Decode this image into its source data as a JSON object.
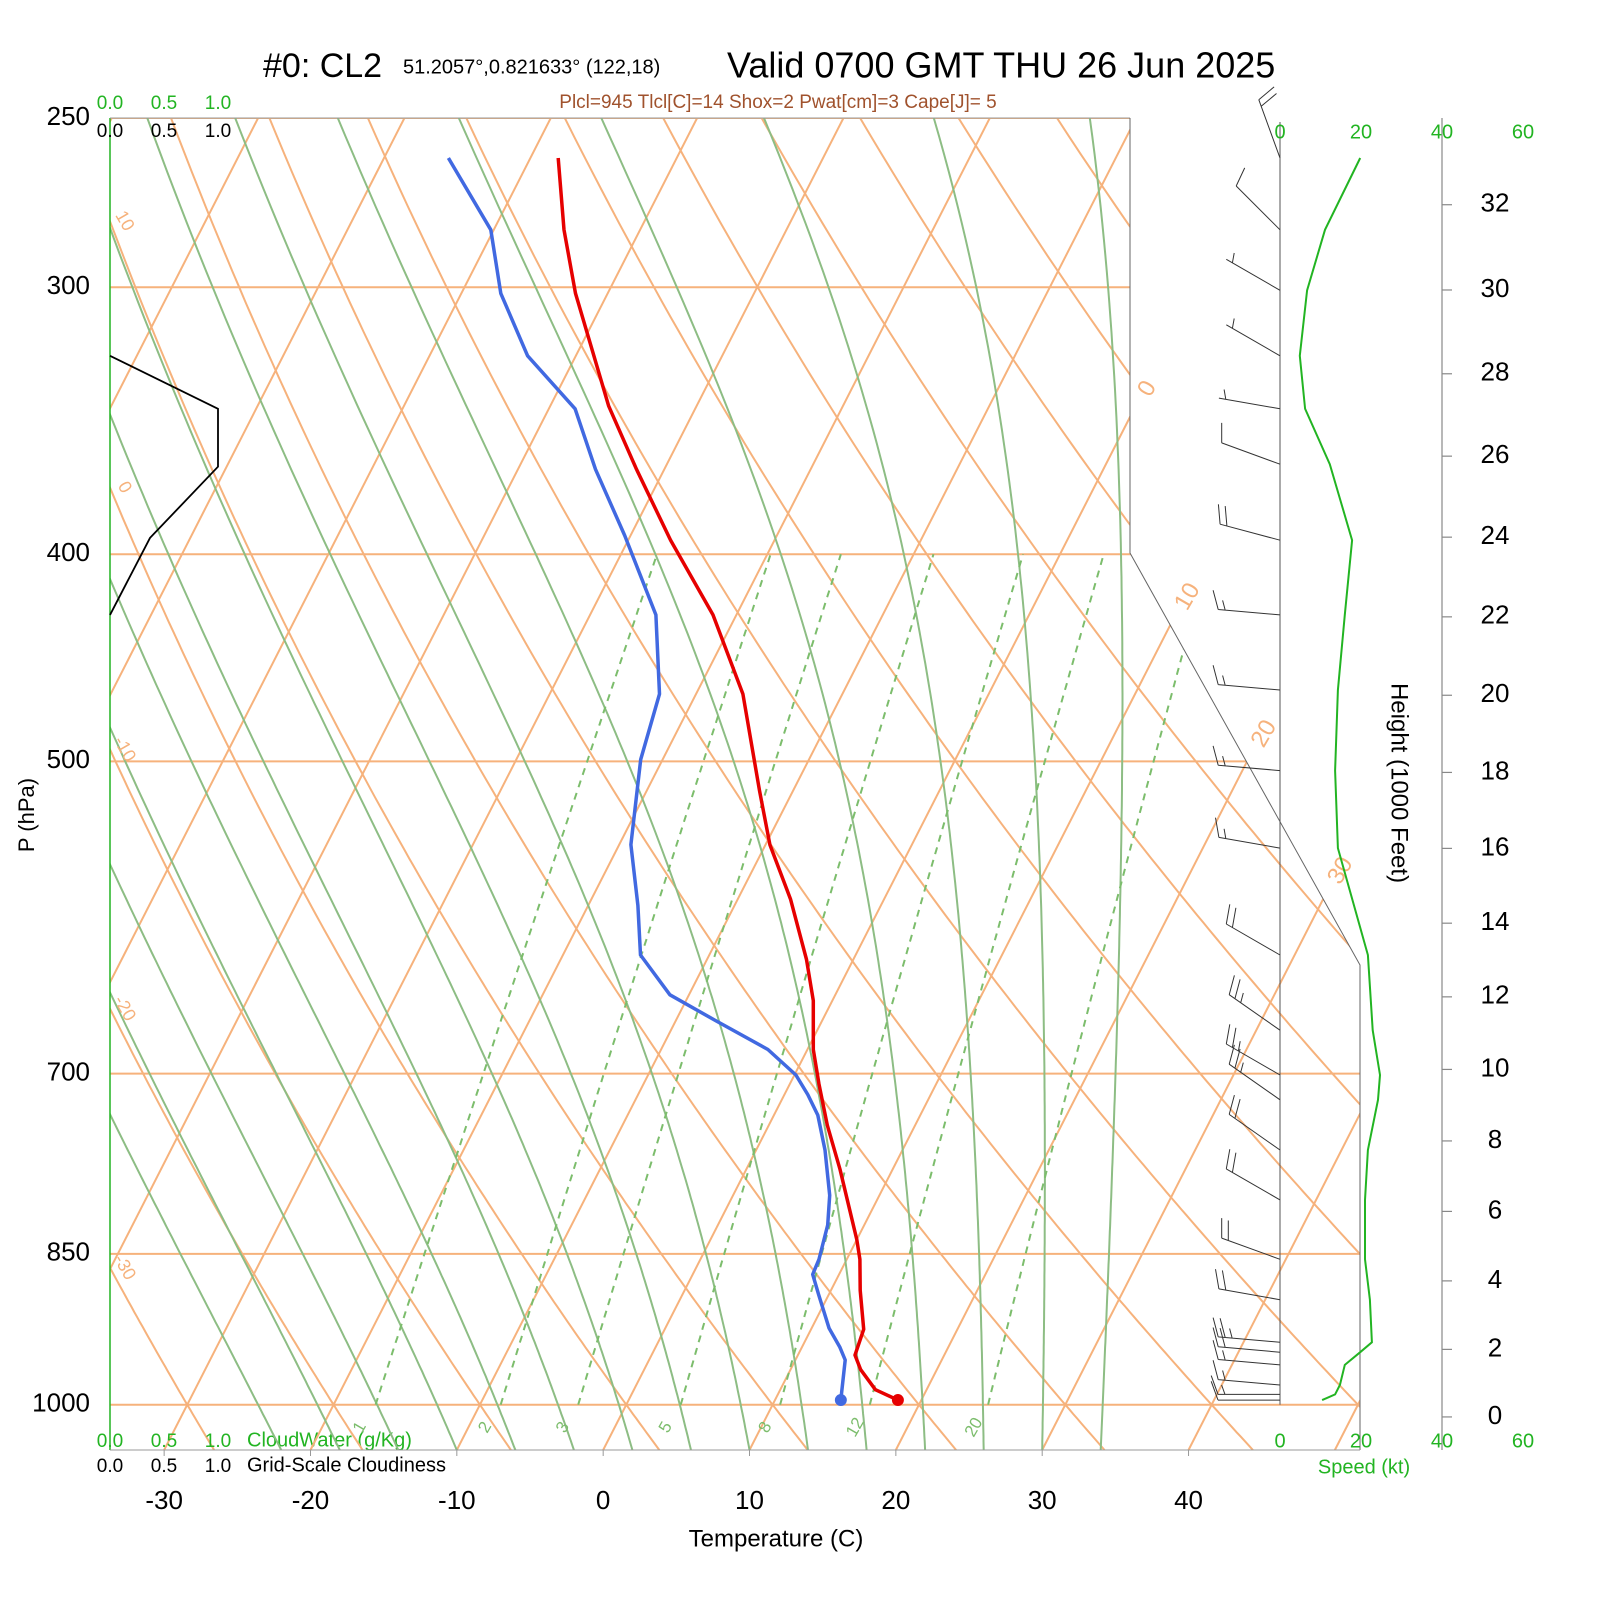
{
  "chart_data": {
    "type": "skew-t",
    "title": "#0: CL2",
    "location": "51.2057°,0.821633° (122,18)",
    "valid": "Valid 0700 GMT THU 26 Jun 2025",
    "subtitle": "Plcl=945 Tlcl[C]=14 Shox=2 Pwat[cm]=3 Cape[J]= 5",
    "ylabel": "P (hPa)",
    "xlabel": "Temperature (C)",
    "log_y": true,
    "ylim": [
      1050,
      250
    ],
    "yticks": [
      250,
      300,
      400,
      500,
      700,
      850,
      1000
    ],
    "xlim": [
      -33.7,
      36
    ],
    "xticks": [
      -30,
      -20,
      -10,
      0,
      10,
      20,
      30,
      40
    ],
    "series": [
      {
        "color": "#e60000",
        "pressure": [
          995,
          984,
          963,
          948,
          922,
          884,
          855,
          837,
          811,
          776,
          740,
          708,
          682,
          647,
          619,
          580,
          547,
          516,
          465,
          427,
          394,
          365,
          341,
          302,
          282,
          261
        ],
        "values": [
          18.4,
          16.5,
          14.8,
          13.9,
          13.6,
          12.0,
          10.9,
          10.0,
          8.5,
          6.4,
          4.0,
          2.0,
          0.4,
          -1.3,
          -3.2,
          -6.4,
          -9.7,
          -12.3,
          -16.8,
          -21.6,
          -27.1,
          -31.9,
          -36.0,
          -42.2,
          -45.2,
          -48.1
        ]
      },
      {
        "color": "#4169e1",
        "pressure": [
          995,
          953,
          940,
          921,
          888,
          869,
          855,
          824,
          798,
          760,
          732,
          716,
          701,
          682,
          661,
          643,
          616,
          584,
          547,
          499,
          465,
          427,
          392,
          365,
          342,
          323,
          302,
          282,
          261
        ],
        "values": [
          14.5,
          13.4,
          12.6,
          11.2,
          9.3,
          8.2,
          8.1,
          7.5,
          6.6,
          4.7,
          3.0,
          1.6,
          0.1,
          -2.7,
          -7.3,
          -11.3,
          -14.7,
          -16.6,
          -19.2,
          -21.5,
          -22.5,
          -25.5,
          -30.4,
          -34.7,
          -38.2,
          -43.3,
          -47.3,
          -50.2,
          -55.6
        ]
      }
    ],
    "isotherm_labels": [
      0,
      10,
      20,
      30
    ],
    "dry_adiabat_labels": [
      10,
      0,
      -10,
      -20,
      -30
    ],
    "mixing_ratio_labels": [
      1,
      2,
      3,
      5,
      8,
      12,
      20
    ],
    "height": {
      "label": "Height (1000 Feet)",
      "ticks": [
        0,
        2,
        4,
        6,
        8,
        10,
        12,
        14,
        16,
        18,
        20,
        22,
        24,
        26,
        28,
        30,
        32
      ]
    },
    "wind": {
      "label": "Speed (kt)",
      "color": "#22b422",
      "xlim": [
        0,
        60
      ],
      "xticks": [
        0,
        20,
        40,
        60
      ],
      "pressure": [
        261,
        282,
        301,
        323,
        342,
        363,
        394,
        427,
        463,
        505,
        549,
        616,
        668,
        701,
        720,
        760,
        802,
        855,
        893,
        935,
        945,
        958,
        979,
        989,
        995
      ],
      "speed": [
        19.8,
        11.1,
        6.7,
        4.9,
        6.2,
        12.3,
        17.8,
        16.0,
        14.3,
        13.6,
        14.3,
        21.7,
        22.9,
        24.7,
        24.2,
        21.7,
        21.0,
        21.0,
        22.2,
        22.7,
        19.8,
        16.0,
        14.8,
        13.6,
        10.4
      ],
      "direction": [
        340,
        315,
        300,
        300,
        280,
        290,
        285,
        275,
        275,
        275,
        280,
        300,
        305,
        300,
        305,
        305,
        300,
        290,
        280,
        275,
        275,
        275,
        275,
        270,
        270
      ]
    },
    "cloud": {
      "water_label": "CloudWater (g/Kg)",
      "cloudiness_label": "Grid-Scale Cloudiness",
      "xlim": [
        0,
        1
      ],
      "xticks": [
        {
          "value": 0,
          "label": "0.0"
        },
        {
          "value": 0.5,
          "label": "0.5"
        },
        {
          "value": 1,
          "label": "1.0"
        }
      ],
      "pressure": [
        323,
        342,
        364,
        393,
        427
      ],
      "cloudiness": [
        0,
        1,
        1,
        0.37,
        0
      ]
    }
  }
}
